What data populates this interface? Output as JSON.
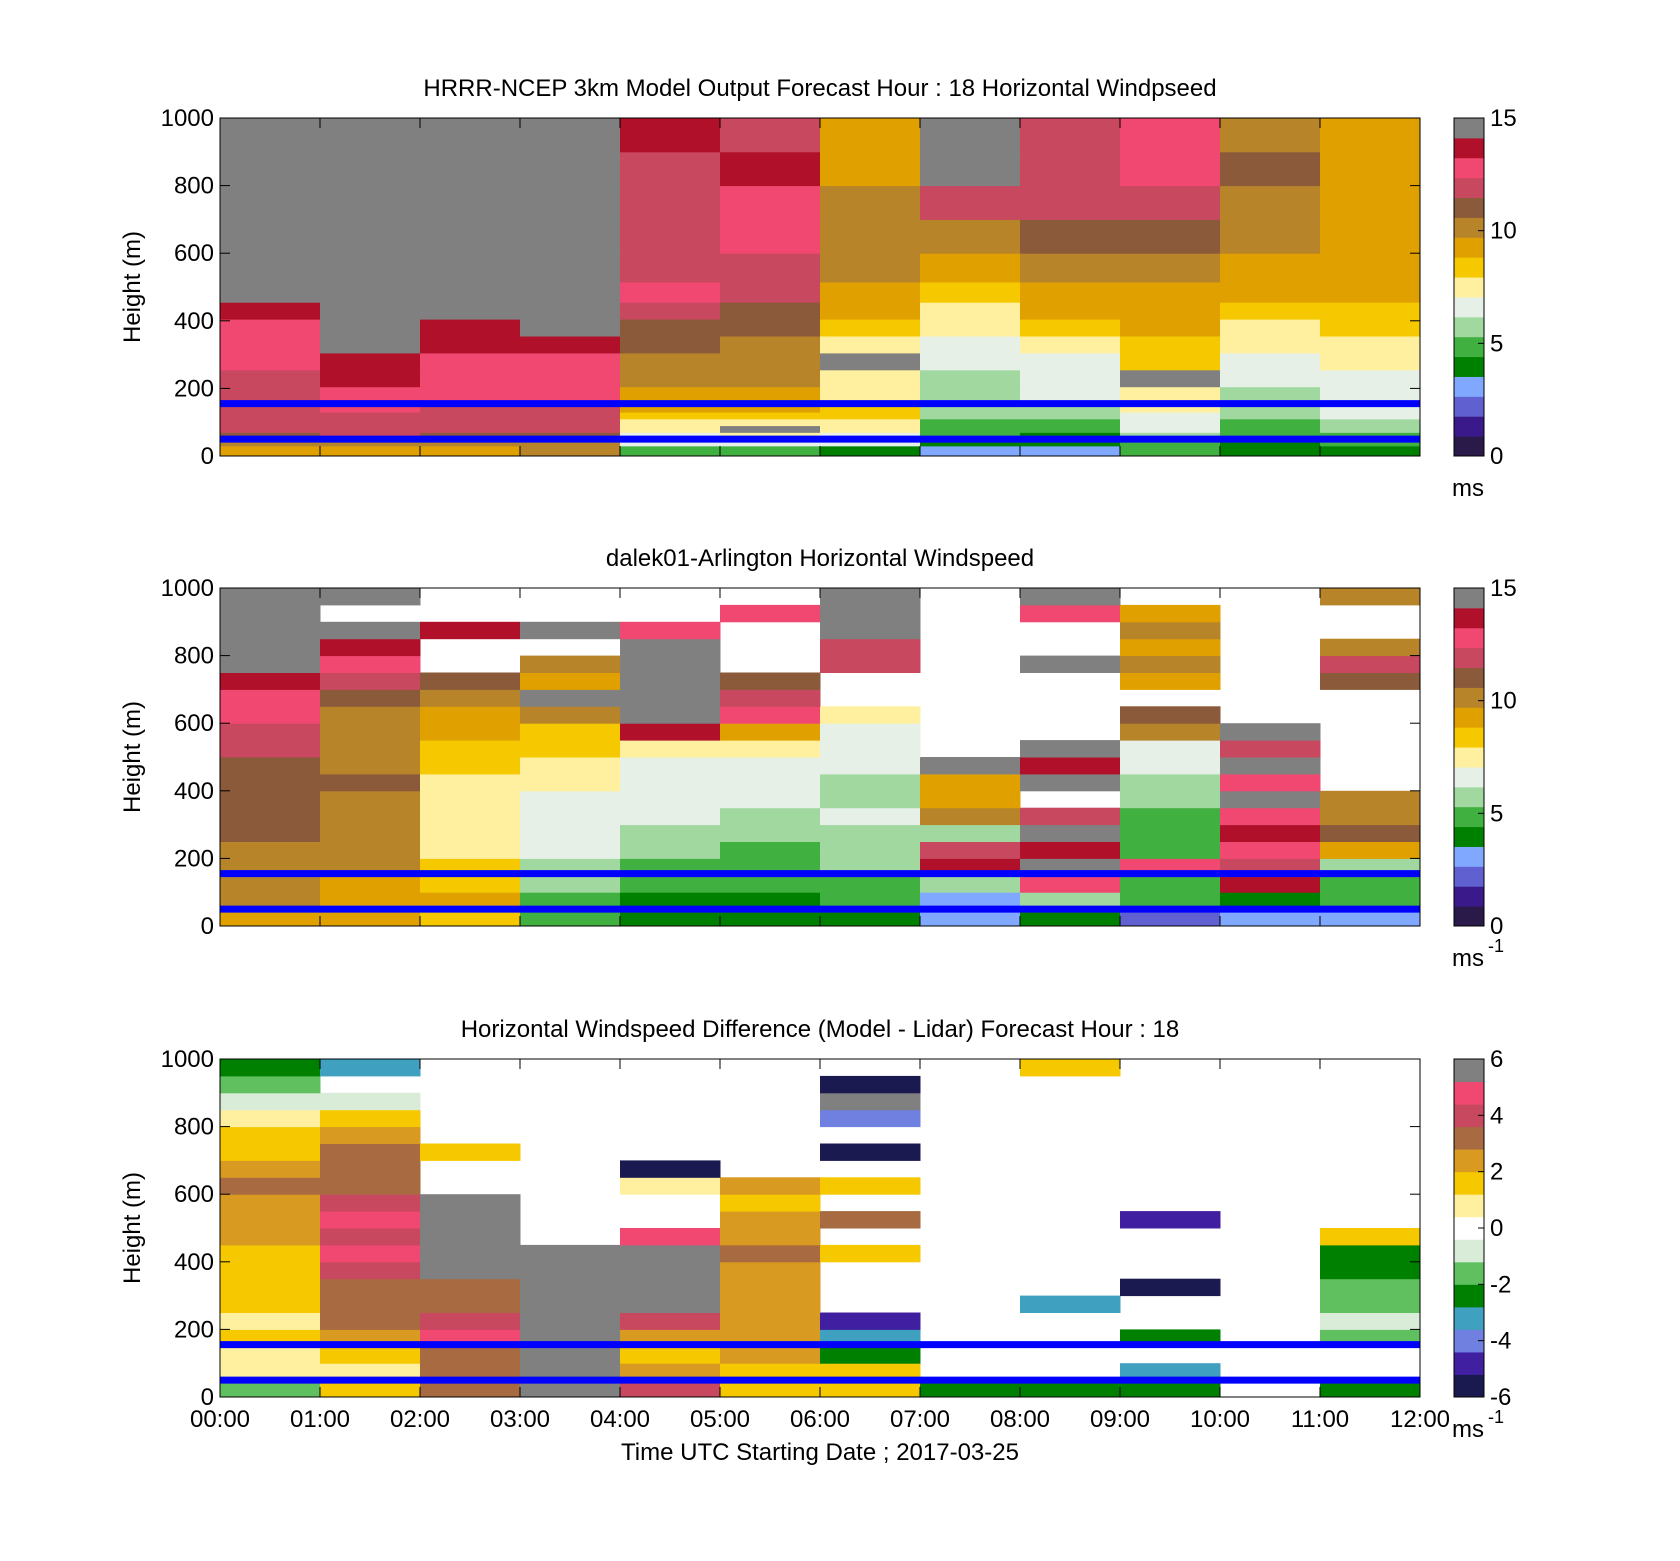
{
  "palette": {
    "speed": [
      "#2a1a4a",
      "#3a1a8a",
      "#6060d0",
      "#80a8ff",
      "#008000",
      "#40b040",
      "#a0d8a0",
      "#e6f0e6",
      "#fff0a0",
      "#f5c800",
      "#e0a000",
      "#b8842a",
      "#8a5a3a",
      "#c84860",
      "#f04870",
      "#b0102a",
      "#808080"
    ],
    "diff": [
      "#1a1a50",
      "#4020a0",
      "#7080e0",
      "#40a0c0",
      "#008000",
      "#60c060",
      "#d8ecd8",
      "#ffffff",
      "#fff0a0",
      "#f5c800",
      "#d89a20",
      "#a86a40",
      "#c84860",
      "#f04870",
      "#808080"
    ],
    "marker_line": "#0000ff"
  },
  "chart_data": [
    {
      "type": "heatmap",
      "title": "HRRR-NCEP 3km Model Output   Forecast Hour : 18 Horizontal Windpseed",
      "ylabel": "Height (m)",
      "ylim": [
        0,
        1000
      ],
      "yticks": [
        "0",
        "200",
        "400",
        "600",
        "800",
        "1000"
      ],
      "xlim": [
        "00:00",
        "12:00"
      ],
      "colorbar": {
        "ticks": [
          "0",
          "5",
          "10",
          "15"
        ],
        "range": [
          0,
          15
        ],
        "unit": "ms",
        "exponent": ""
      },
      "marker_lines_m": [
        50,
        155
      ],
      "x_hours": [
        0,
        1,
        2,
        3,
        4,
        5,
        6,
        7,
        8,
        9,
        10,
        11
      ],
      "y_heights_m": [
        20,
        40,
        60,
        80,
        100,
        120,
        140,
        180,
        230,
        280,
        330,
        380,
        430,
        480,
        550,
        650,
        750,
        850,
        950
      ],
      "values": [
        [
          9.5,
          9.5,
          9.5,
          10,
          4.5,
          5.2,
          4.4,
          3.2,
          3.5,
          4.5,
          4.0,
          4.2
        ],
        [
          10,
          10.5,
          10.2,
          10.5,
          6.2,
          6.5,
          6.5,
          3.8,
          3.6,
          4.6,
          4.2,
          4.5
        ],
        [
          11,
          11.5,
          11,
          11.2,
          6.8,
          7.2,
          7.0,
          4.5,
          4.2,
          5.5,
          4.6,
          5.2
        ],
        [
          11.5,
          12,
          11.5,
          11.8,
          7.2,
          16,
          7.4,
          4.8,
          4.6,
          6.2,
          4.9,
          5.6
        ],
        [
          11.8,
          12.2,
          11.8,
          12,
          7.6,
          7.6,
          7.6,
          5.0,
          5.0,
          6.6,
          5.2,
          6.0
        ],
        [
          12,
          12.3,
          12,
          12.2,
          8.2,
          8.2,
          8.0,
          5.3,
          5.4,
          7.0,
          5.5,
          6.3
        ],
        [
          12,
          12.5,
          12.2,
          12.3,
          9.0,
          9.0,
          8.5,
          5.6,
          5.8,
          7.2,
          5.8,
          6.6
        ],
        [
          12.2,
          13,
          12.5,
          12.6,
          9.5,
          9.6,
          7.4,
          5.6,
          6.2,
          7.4,
          6.0,
          6.8
        ],
        [
          12.3,
          13.5,
          12.8,
          12.8,
          9.8,
          9.8,
          7.8,
          6.0,
          6.6,
          16,
          6.3,
          7.0
        ],
        [
          12.5,
          14,
          13.2,
          13.2,
          10.3,
          10.2,
          16,
          6.6,
          7.0,
          8.0,
          6.7,
          7.4
        ],
        [
          12.8,
          14.2,
          13.5,
          13.6,
          10.8,
          10.4,
          7.6,
          7.0,
          7.6,
          8.6,
          7.2,
          7.8
        ],
        [
          13.2,
          14.5,
          14,
          14.2,
          11.2,
          10.6,
          8.6,
          7.4,
          8.4,
          9.0,
          7.6,
          8.4
        ],
        [
          13.6,
          14.2,
          14.5,
          14.5,
          11.5,
          10.8,
          9.2,
          7.8,
          9.0,
          9.2,
          8.0,
          8.8
        ],
        [
          14.2,
          14.6,
          16,
          16,
          13.2,
          11.5,
          9.5,
          8.6,
          9.6,
          9.5,
          9.2,
          9.0
        ],
        [
          14.4,
          14.8,
          16,
          16,
          11.8,
          11.8,
          10,
          9.5,
          10.2,
          9.8,
          9.6,
          9.2
        ],
        [
          14.6,
          15,
          16,
          16,
          12.2,
          12.5,
          10.2,
          10.3,
          11.2,
          11.0,
          9.8,
          9.4
        ],
        [
          15,
          15.2,
          16,
          16,
          11.8,
          13.2,
          9.8,
          11.8,
          11.6,
          11.5,
          10.5,
          9.6
        ],
        [
          15.5,
          15.4,
          15.6,
          15.5,
          12.0,
          13.6,
          9.6,
          14.5,
          12.2,
          13.2,
          10.6,
          9.5
        ],
        [
          15.6,
          14.6,
          15.2,
          15.3,
          13.4,
          11.8,
          9.4,
          14.6,
          11.8,
          12.6,
          10.4,
          9.3
        ]
      ]
    },
    {
      "type": "heatmap",
      "title": "dalek01-Arlington  Horizontal Windspeed",
      "ylabel": "Height (m)",
      "ylim": [
        0,
        1000
      ],
      "yticks": [
        "0",
        "200",
        "400",
        "600",
        "800",
        "1000"
      ],
      "xlim": [
        "00:00",
        "12:00"
      ],
      "colorbar": {
        "ticks": [
          "0",
          "5",
          "10",
          "15"
        ],
        "range": [
          0,
          15
        ],
        "unit": "ms",
        "exponent": "-1"
      },
      "marker_lines_m": [
        50,
        155
      ],
      "x_hours": [
        0,
        1,
        2,
        3,
        4,
        5,
        6,
        7,
        8,
        9,
        10,
        11
      ],
      "y_heights_m": [
        25,
        75,
        125,
        175,
        225,
        275,
        325,
        375,
        425,
        475,
        525,
        575,
        625,
        675,
        725,
        775,
        825,
        875,
        925,
        975
      ],
      "values": [
        [
          9.5,
          9.2,
          8.8,
          4.5,
          4.0,
          3.8,
          4.2,
          2.8,
          4.0,
          2.5,
          3.0,
          3.5
        ],
        [
          10,
          9.4,
          9.0,
          5.0,
          4.4,
          4.2,
          4.6,
          3.5,
          5.4,
          5.0,
          4.0,
          4.8
        ],
        [
          10,
          9.6,
          8.6,
          5.5,
          4.6,
          4.6,
          5.0,
          6.0,
          12.5,
          4.5,
          13.5,
          4.6
        ],
        [
          10.2,
          9.8,
          8.2,
          5.8,
          5.0,
          5.0,
          5.6,
          13.5,
          14.2,
          13.2,
          12.0,
          5.8
        ],
        [
          10.4,
          10.0,
          7.8,
          6.2,
          5.4,
          5.2,
          5.8,
          11.5,
          13.4,
          4.5,
          12.5,
          9.6
        ],
        [
          10.6,
          10.2,
          7.6,
          6.6,
          5.8,
          5.6,
          6.0,
          5.6,
          15.5,
          4.6,
          14.0,
          10.6
        ],
        [
          10.8,
          10.4,
          7.4,
          6.8,
          6.2,
          6.0,
          6.2,
          10.0,
          12.0,
          5.0,
          13.0,
          9.8
        ],
        [
          11.0,
          10.4,
          7.2,
          7.0,
          6.4,
          6.4,
          6.0,
          9.6,
          14.0,
          5.4,
          14.2,
          10.2
        ],
        [
          11.2,
          10.6,
          7.6,
          7.4,
          6.6,
          6.6,
          5.8,
          9.2,
          16,
          5.8,
          13.0,
          9.0
        ],
        [
          11.4,
          10.2,
          8.2,
          7.8,
          6.8,
          6.8,
          6.2,
          16,
          13.5,
          6.2,
          14.5,
          9.2
        ],
        [
          11.6,
          10.0,
          8.8,
          8.2,
          7.4,
          7.2,
          6.6,
          12.5,
          16,
          6.6,
          12.0,
          9.6
        ],
        [
          11.8,
          9.8,
          9.2,
          8.6,
          13.8,
          9.0,
          6.8,
          13.2,
          14.8,
          10.2,
          16,
          10.5
        ],
        [
          12.4,
          10.2,
          9.6,
          9.8,
          14.2,
          12.6,
          7.6,
          16,
          12.2,
          10.6,
          12.5,
          10.2
        ],
        [
          13.0,
          10.6,
          9.8,
          16,
          14.6,
          12.2,
          10.4,
          14.4,
          16,
          10.0,
          10.2,
          10.8
        ],
        [
          13.8,
          12.0,
          10.6,
          9.0,
          16,
          10.8,
          11.2,
          16,
          10.2,
          9.4,
          13.2,
          11.4
        ],
        [
          14.4,
          12.8,
          12.4,
          10.2,
          16,
          11.8,
          11.6,
          13.6,
          16,
          10.2,
          9.8,
          11.8
        ],
        [
          14.8,
          13.6,
          13.2,
          12.8,
          14.8,
          12.6,
          12.2,
          16,
          14.8,
          9.6,
          10.4,
          10.2
        ],
        [
          15.2,
          14.2,
          13.8,
          16,
          12.4,
          13.2,
          14.6,
          16,
          16,
          10.0,
          9.8,
          10.8
        ],
        [
          16,
          16,
          14.4,
          15.0,
          14.6,
          12.4,
          16,
          16,
          12.8,
          9.4,
          10.2,
          11.0
        ],
        [
          16,
          16,
          14.8,
          13.6,
          15.0,
          11.2,
          16,
          16,
          14.8,
          10.2,
          9.6,
          10.4
        ]
      ],
      "missing": [
        [
          0,
          0,
          0,
          0,
          0,
          0,
          0,
          0,
          0,
          0,
          0,
          0
        ],
        [
          0,
          0,
          0,
          0,
          0,
          0,
          0,
          0,
          0,
          0,
          0,
          0
        ],
        [
          0,
          0,
          0,
          0,
          0,
          0,
          0,
          0,
          0,
          0,
          0,
          0
        ],
        [
          0,
          0,
          0,
          0,
          0,
          0,
          0,
          0,
          0,
          0,
          0,
          0
        ],
        [
          0,
          0,
          0,
          0,
          0,
          0,
          0,
          0,
          0,
          0,
          0,
          0
        ],
        [
          0,
          0,
          0,
          0,
          0,
          0,
          0,
          0,
          0,
          0,
          0,
          0
        ],
        [
          0,
          0,
          0,
          0,
          0,
          0,
          0,
          0,
          0,
          0,
          0,
          0
        ],
        [
          0,
          0,
          0,
          0,
          0,
          0,
          0,
          0,
          1,
          0,
          0,
          0
        ],
        [
          0,
          0,
          0,
          0,
          0,
          0,
          0,
          0,
          0,
          0,
          0,
          1
        ],
        [
          0,
          0,
          0,
          0,
          0,
          0,
          0,
          0,
          0,
          0,
          0,
          1
        ],
        [
          0,
          0,
          0,
          0,
          0,
          0,
          0,
          1,
          0,
          0,
          0,
          1
        ],
        [
          0,
          0,
          0,
          0,
          0,
          0,
          0,
          1,
          1,
          0,
          0,
          1
        ],
        [
          0,
          0,
          0,
          0,
          0,
          0,
          0,
          1,
          1,
          0,
          1,
          1
        ],
        [
          0,
          0,
          0,
          0,
          0,
          0,
          1,
          1,
          1,
          1,
          1,
          1
        ],
        [
          0,
          0,
          0,
          0,
          0,
          0,
          1,
          1,
          1,
          0,
          1,
          0
        ],
        [
          0,
          0,
          1,
          0,
          0,
          1,
          0,
          1,
          0,
          0,
          1,
          0
        ],
        [
          0,
          0,
          1,
          1,
          0,
          1,
          0,
          1,
          1,
          0,
          1,
          0
        ],
        [
          0,
          0,
          0,
          0,
          0,
          1,
          0,
          1,
          1,
          0,
          1,
          1
        ],
        [
          0,
          1,
          1,
          1,
          1,
          0,
          0,
          1,
          0,
          0,
          1,
          1
        ],
        [
          0,
          0,
          1,
          1,
          1,
          1,
          0,
          1,
          0,
          1,
          1,
          0
        ]
      ]
    },
    {
      "type": "heatmap",
      "title": "Horizontal Windspeed Difference (Model - Lidar) Forecast Hour : 18",
      "ylabel": "Height (m)",
      "xlabel": "Time UTC  Starting Date ; 2017-03-25",
      "ylim": [
        0,
        1000
      ],
      "yticks": [
        "0",
        "200",
        "400",
        "600",
        "800",
        "1000"
      ],
      "xticks": [
        "00:00",
        "01:00",
        "02:00",
        "03:00",
        "04:00",
        "05:00",
        "06:00",
        "07:00",
        "08:00",
        "09:00",
        "10:00",
        "11:00",
        "12:00"
      ],
      "colorbar": {
        "ticks": [
          "-6",
          "-4",
          "-2",
          "0",
          "2",
          "4",
          "6"
        ],
        "range": [
          -6,
          6
        ],
        "unit": "ms",
        "exponent": "-1"
      },
      "marker_lines_m": [
        50,
        155
      ],
      "x_hours": [
        0,
        1,
        2,
        3,
        4,
        5,
        6,
        7,
        8,
        9,
        10,
        11
      ],
      "y_heights_m": [
        25,
        75,
        125,
        175,
        225,
        275,
        325,
        375,
        425,
        475,
        525,
        575,
        625,
        675,
        725,
        775,
        825,
        875,
        925,
        975
      ],
      "values": [
        [
          -2.0,
          1.2,
          3.5,
          6,
          4.2,
          1.2,
          1.5,
          -2.5,
          -2.2,
          -2.6,
          0,
          -2.4
        ],
        [
          0.6,
          1.0,
          3.2,
          6,
          2.2,
          1.5,
          1.2,
          0,
          0,
          -3.0,
          0,
          0
        ],
        [
          0.4,
          1.6,
          3.6,
          6,
          1.8,
          2.2,
          -2.6,
          0,
          0,
          0,
          0,
          0
        ],
        [
          1.2,
          2.6,
          4.6,
          6,
          2.6,
          2.6,
          -3.4,
          0,
          0,
          -2.2,
          0,
          -1.4
        ],
        [
          1.0,
          2.8,
          4.2,
          6,
          3.8,
          2.4,
          -4.8,
          0,
          0,
          0,
          0,
          -1.0
        ],
        [
          1.4,
          3.2,
          3.6,
          6,
          6,
          2.6,
          0,
          0,
          -3.2,
          0,
          0,
          -1.6
        ],
        [
          1.6,
          3.6,
          2.8,
          6,
          6,
          2.0,
          0,
          0,
          0,
          -5.6,
          0,
          -2.0
        ],
        [
          1.4,
          4.0,
          6,
          6,
          6,
          2.2,
          0,
          0,
          0,
          0,
          0,
          -2.4
        ],
        [
          1.8,
          4.4,
          6,
          6,
          6,
          2.8,
          1.8,
          0,
          0,
          0,
          0,
          -2.8
        ],
        [
          2.2,
          4.2,
          6,
          0,
          5.0,
          2.6,
          0,
          0,
          0,
          0,
          0,
          1.2
        ],
        [
          2.0,
          5.0,
          6,
          0,
          0,
          2.4,
          3.2,
          0,
          0,
          -5.0,
          0,
          0
        ],
        [
          2.4,
          4.0,
          6,
          0,
          0,
          1.8,
          0,
          0,
          0,
          0,
          0,
          0
        ],
        [
          2.8,
          3.6,
          0,
          0,
          0.8,
          2.0,
          1.4,
          0,
          0,
          0,
          0,
          0
        ],
        [
          2.2,
          3.2,
          0,
          0,
          -5.2,
          0,
          0,
          0,
          0,
          0,
          0,
          0
        ],
        [
          1.6,
          2.8,
          1.8,
          0,
          0,
          0,
          -5.6,
          0,
          0,
          0,
          0,
          0
        ],
        [
          1.2,
          2.2,
          0,
          0,
          0,
          0,
          0,
          0,
          0,
          0,
          0,
          0
        ],
        [
          0.4,
          1.6,
          0,
          0,
          0,
          0,
          -4.2,
          0,
          0,
          0,
          0,
          0
        ],
        [
          -0.6,
          -0.8,
          0,
          0,
          0,
          0,
          6,
          0,
          0,
          0,
          0,
          0
        ],
        [
          -1.8,
          0,
          0,
          0,
          0,
          0,
          -5.6,
          0,
          0,
          0,
          0,
          0
        ],
        [
          -2.6,
          -3.2,
          0,
          0,
          0,
          0,
          0,
          0,
          1.2,
          0,
          0,
          0
        ]
      ]
    }
  ]
}
